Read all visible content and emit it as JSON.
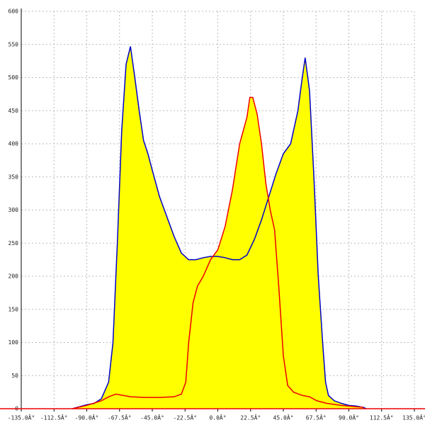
{
  "chart_data": {
    "type": "line",
    "xlim": [
      -135,
      135
    ],
    "ylim": [
      0,
      600
    ],
    "xticks": [
      {
        "value": -135,
        "label": "-135.0Â°"
      },
      {
        "value": -112.5,
        "label": "-112.5Â°"
      },
      {
        "value": -90,
        "label": "-90.0Â°"
      },
      {
        "value": -67.5,
        "label": "-67.5Â°"
      },
      {
        "value": -45,
        "label": "-45.0Â°"
      },
      {
        "value": -22.5,
        "label": "-22.5Â°"
      },
      {
        "value": 0,
        "label": "0.0Â°"
      },
      {
        "value": 22.5,
        "label": "22.5Â°"
      },
      {
        "value": 45,
        "label": "45.0Â°"
      },
      {
        "value": 67.5,
        "label": "67.5Â°"
      },
      {
        "value": 90,
        "label": "90.0Â°"
      },
      {
        "value": 112.5,
        "label": "112.5Â°"
      },
      {
        "value": 135,
        "label": "135.0Â°"
      }
    ],
    "yticks": [
      0,
      50,
      100,
      150,
      200,
      250,
      300,
      350,
      400,
      450,
      500,
      550,
      600
    ],
    "grid": true,
    "series": [
      {
        "color": "#0000cc",
        "fill": "#ffff00",
        "x": [
          -100,
          -95,
          -90,
          -85,
          -80,
          -75,
          -72,
          -69,
          -66,
          -63,
          -60,
          -57,
          -54,
          -51,
          -48,
          -45,
          -40,
          -35,
          -30,
          -25,
          -20,
          -15,
          -10,
          -5,
          0,
          5,
          10,
          15,
          20,
          25,
          30,
          35,
          40,
          45,
          50,
          55,
          58,
          60,
          63,
          66,
          69,
          72,
          74,
          76,
          80,
          85,
          90,
          95,
          100,
          102
        ],
        "values": [
          0,
          3,
          6,
          8,
          15,
          40,
          100,
          250,
          420,
          520,
          547,
          500,
          450,
          405,
          385,
          360,
          320,
          290,
          260,
          235,
          225,
          225,
          228,
          230,
          230,
          228,
          225,
          225,
          232,
          255,
          285,
          320,
          355,
          385,
          400,
          450,
          500,
          530,
          480,
          350,
          200,
          100,
          40,
          20,
          12,
          8,
          5,
          4,
          2,
          0
        ]
      },
      {
        "color": "#ee0000",
        "fill": "#ffff00",
        "x": [
          -100,
          -90,
          -80,
          -75,
          -70,
          -65,
          -60,
          -50,
          -40,
          -30,
          -25,
          -22,
          -20,
          -17,
          -14,
          -10,
          -5,
          0,
          5,
          10,
          15,
          20,
          22,
          24,
          27,
          30,
          33,
          36,
          39,
          42,
          45,
          48,
          52,
          58,
          63,
          68,
          75,
          85,
          95,
          100
        ],
        "values": [
          0,
          5,
          12,
          18,
          22,
          20,
          18,
          17,
          17,
          18,
          22,
          40,
          100,
          160,
          185,
          200,
          225,
          240,
          275,
          330,
          400,
          440,
          470,
          470,
          445,
          400,
          340,
          300,
          270,
          180,
          80,
          35,
          25,
          20,
          18,
          12,
          8,
          5,
          3,
          2
        ]
      }
    ]
  }
}
